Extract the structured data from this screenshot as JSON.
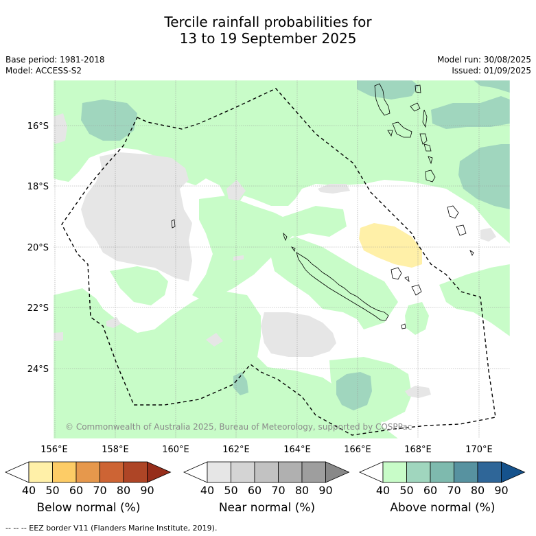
{
  "title_line1": "Tercile rainfall probabilities for",
  "title_line2": "13 to 19 September 2025",
  "base_period": "Base period: 1981-2018",
  "model": "Model: ACCESS-S2",
  "model_run": "Model run: 30/08/2025",
  "issued": "Issued: 01/09/2025",
  "copyright": "© Commonwealth of Australia 2025, Bureau of Meteorology, supported by COSPPac",
  "lon_ticks": [
    "156°E",
    "158°E",
    "160°E",
    "162°E",
    "164°E",
    "166°E",
    "168°E",
    "170°E"
  ],
  "lat_ticks": [
    "16°S",
    "18°S",
    "20°S",
    "22°S",
    "24°S"
  ],
  "colorbars": [
    {
      "label": "Below normal (%)",
      "ticks": [
        "40",
        "50",
        "60",
        "70",
        "80",
        "90"
      ],
      "colors": [
        "#ffffff",
        "#fff0a8",
        "#fdcc66",
        "#e6984c",
        "#cd6434",
        "#ae4526",
        "#962d1a"
      ]
    },
    {
      "label": "Near normal (%)",
      "ticks": [
        "40",
        "50",
        "60",
        "70",
        "80",
        "90"
      ],
      "colors": [
        "#ffffff",
        "#e6e6e6",
        "#d4d4d4",
        "#c2c2c2",
        "#b0b0b0",
        "#9e9e9e",
        "#888888"
      ]
    },
    {
      "label": "Above normal (%)",
      "ticks": [
        "40",
        "50",
        "60",
        "70",
        "80",
        "90"
      ],
      "colors": [
        "#ffffff",
        "#c8fcc8",
        "#a0d6be",
        "#7ebaae",
        "#5792a0",
        "#2f6698",
        "#15528c"
      ]
    }
  ],
  "footnote": "-- -- -- EEZ border V11 (Flanders Marine Institute, 2019)."
}
